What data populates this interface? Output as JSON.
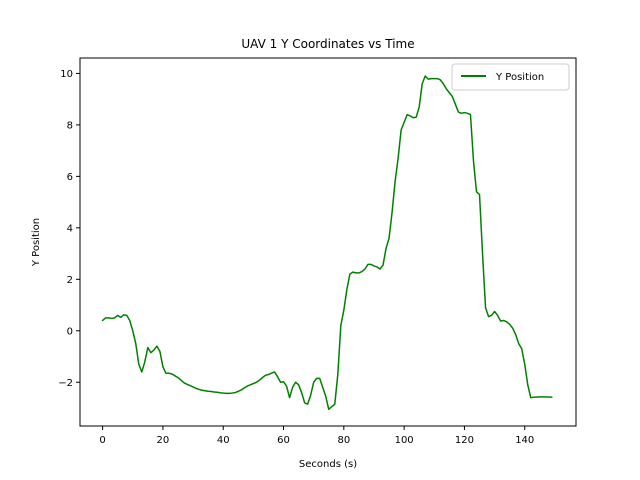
{
  "chart_data": {
    "type": "line",
    "title": "UAV 1 Y Coordinates vs Time",
    "xlabel": "Seconds (s)",
    "ylabel": "Y Position",
    "xlim": [
      -7.5,
      157
    ],
    "ylim": [
      -3.7,
      10.6
    ],
    "xticks": [
      0,
      20,
      40,
      60,
      80,
      100,
      120,
      140
    ],
    "yticks": [
      -2,
      0,
      2,
      4,
      6,
      8,
      10
    ],
    "grid": false,
    "legend_position": "top-right",
    "series": [
      {
        "name": "Y Position",
        "color": "#008000",
        "x": [
          0,
          1,
          2,
          3,
          4,
          5,
          6,
          7,
          8,
          9,
          10,
          11,
          12,
          13,
          14,
          15,
          16,
          17,
          18,
          19,
          20,
          21,
          22,
          23,
          24,
          25,
          26,
          27,
          28,
          29,
          30,
          31,
          32,
          33,
          34,
          35,
          36,
          37,
          38,
          39,
          40,
          41,
          42,
          43,
          44,
          45,
          46,
          47,
          48,
          49,
          50,
          51,
          52,
          53,
          54,
          55,
          56,
          57,
          58,
          59,
          60,
          61,
          62,
          63,
          64,
          65,
          66,
          67,
          68,
          69,
          70,
          71,
          72,
          73,
          74,
          75,
          76,
          77,
          78,
          79,
          80,
          81,
          82,
          83,
          84,
          85,
          86,
          87,
          88,
          89,
          90,
          91,
          92,
          93,
          94,
          95,
          96,
          97,
          98,
          99,
          100,
          101,
          102,
          103,
          104,
          105,
          106,
          107,
          108,
          109,
          110,
          111,
          112,
          113,
          114,
          115,
          116,
          117,
          118,
          119,
          120,
          121,
          122,
          123,
          124,
          125,
          126,
          127,
          128,
          129,
          130,
          131,
          132,
          133,
          134,
          135,
          136,
          137,
          138,
          139,
          140,
          141,
          142,
          143,
          144,
          145,
          146,
          147,
          148,
          149
        ],
        "y": [
          0.4,
          0.5,
          0.5,
          0.48,
          0.5,
          0.6,
          0.52,
          0.62,
          0.6,
          0.4,
          0.0,
          -0.5,
          -1.3,
          -1.6,
          -1.2,
          -0.65,
          -0.85,
          -0.75,
          -0.6,
          -0.8,
          -1.4,
          -1.65,
          -1.65,
          -1.68,
          -1.75,
          -1.82,
          -1.92,
          -2.02,
          -2.08,
          -2.13,
          -2.18,
          -2.24,
          -2.28,
          -2.31,
          -2.33,
          -2.35,
          -2.36,
          -2.38,
          -2.39,
          -2.41,
          -2.42,
          -2.43,
          -2.43,
          -2.42,
          -2.4,
          -2.35,
          -2.3,
          -2.22,
          -2.15,
          -2.1,
          -2.05,
          -2.0,
          -1.92,
          -1.82,
          -1.73,
          -1.7,
          -1.65,
          -1.6,
          -1.78,
          -2.0,
          -1.98,
          -2.15,
          -2.6,
          -2.2,
          -2.0,
          -2.1,
          -2.4,
          -2.8,
          -2.85,
          -2.5,
          -2.0,
          -1.85,
          -1.85,
          -2.2,
          -2.55,
          -3.05,
          -2.95,
          -2.85,
          -1.7,
          0.2,
          0.8,
          1.6,
          2.2,
          2.28,
          2.25,
          2.25,
          2.3,
          2.4,
          2.58,
          2.58,
          2.52,
          2.48,
          2.4,
          2.55,
          3.2,
          3.6,
          4.6,
          5.8,
          6.7,
          7.8,
          8.1,
          8.4,
          8.35,
          8.28,
          8.3,
          8.7,
          9.6,
          9.9,
          9.78,
          9.8,
          9.8,
          9.8,
          9.75,
          9.6,
          9.4,
          9.25,
          9.1,
          8.8,
          8.5,
          8.45,
          8.48,
          8.45,
          8.4,
          6.6,
          5.4,
          5.3,
          3.0,
          0.9,
          0.55,
          0.6,
          0.75,
          0.6,
          0.38,
          0.4,
          0.35,
          0.25,
          0.1,
          -0.15,
          -0.5,
          -0.7,
          -1.3,
          -2.1,
          -2.6,
          -2.58,
          -2.58,
          -2.57,
          -2.57,
          -2.57,
          -2.58,
          -2.58
        ]
      }
    ]
  }
}
